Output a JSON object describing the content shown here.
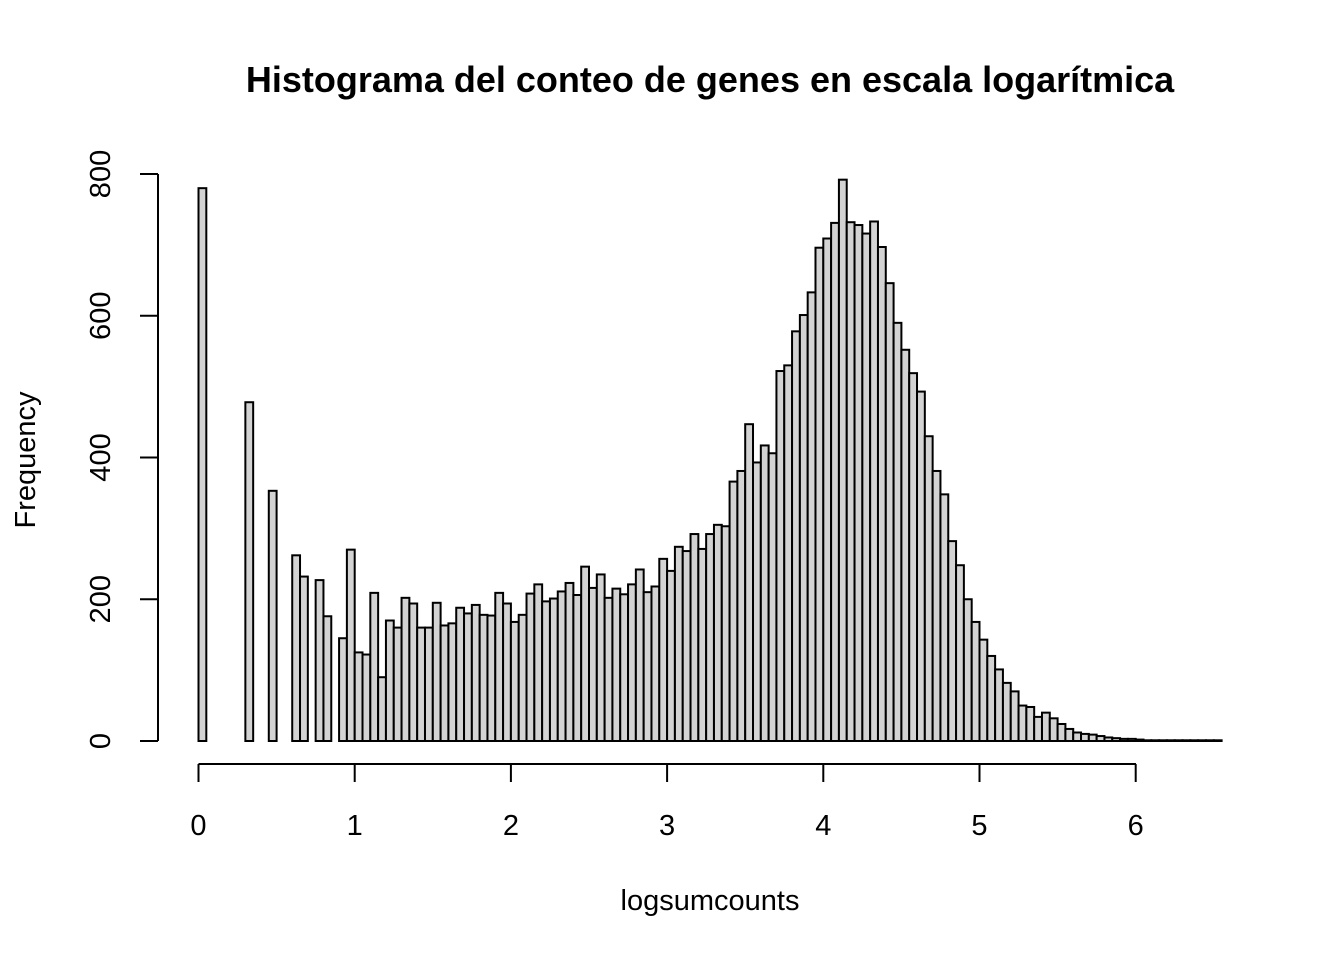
{
  "chart_data": {
    "type": "bar",
    "title": "Histograma del conteo de genes en escala logarítmica",
    "xlabel": "logsumcounts",
    "ylabel": "Frequency",
    "bin_width": 0.05,
    "x_start": 0,
    "xlim": [
      0,
      6.5
    ],
    "ylim": [
      0,
      800
    ],
    "x_ticks": [
      0,
      1,
      2,
      3,
      4,
      5,
      6
    ],
    "y_ticks": [
      0,
      200,
      400,
      600,
      800
    ],
    "x_tick_labels": [
      "0",
      "1",
      "2",
      "3",
      "4",
      "5",
      "6"
    ],
    "y_tick_labels": [
      "0",
      "200",
      "400",
      "600",
      "800"
    ],
    "grid": false,
    "values": [
      780,
      0,
      0,
      0,
      0,
      0,
      478,
      0,
      0,
      353,
      0,
      0,
      262,
      232,
      0,
      227,
      176,
      0,
      145,
      270,
      125,
      122,
      209,
      90,
      170,
      160,
      202,
      194,
      160,
      160,
      195,
      163,
      166,
      188,
      180,
      192,
      178,
      177,
      209,
      194,
      168,
      178,
      208,
      221,
      197,
      201,
      211,
      223,
      206,
      246,
      216,
      235,
      202,
      215,
      207,
      221,
      242,
      210,
      218,
      257,
      240,
      274,
      268,
      292,
      271,
      292,
      305,
      303,
      366,
      381,
      447,
      393,
      417,
      406,
      522,
      530,
      578,
      601,
      633,
      696,
      709,
      731,
      792,
      732,
      728,
      716,
      733,
      697,
      646,
      590,
      552,
      519,
      493,
      430,
      381,
      348,
      282,
      248,
      200,
      168,
      143,
      120,
      101,
      82,
      70,
      50,
      48,
      34,
      40,
      32,
      24,
      17,
      12,
      10,
      9,
      7,
      5,
      4,
      3,
      3,
      2,
      1,
      1,
      1,
      1,
      1,
      1,
      1,
      1,
      1,
      1
    ]
  }
}
